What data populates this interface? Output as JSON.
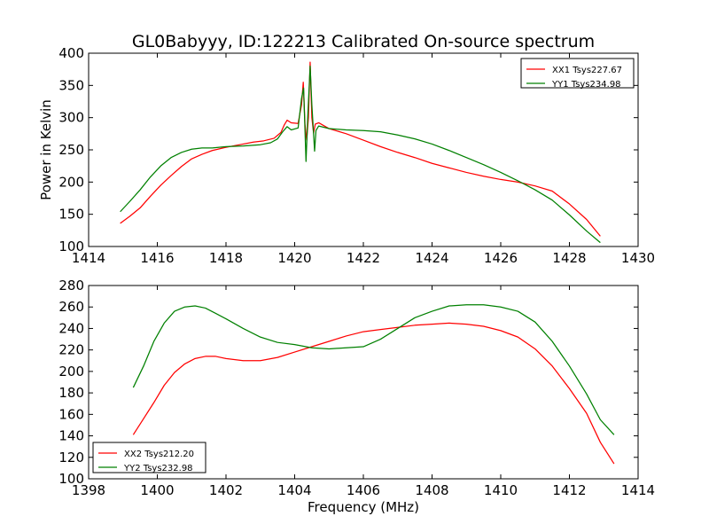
{
  "chart_data": [
    {
      "type": "line",
      "title": "GL0Babyyy, ID:122213 Calibrated On-source spectrum",
      "xlabel": "",
      "ylabel": "Power in Kelvin",
      "xlim": [
        1414,
        1430
      ],
      "ylim": [
        100,
        400
      ],
      "xticks": [
        1414,
        1416,
        1418,
        1420,
        1422,
        1424,
        1426,
        1428,
        1430
      ],
      "yticks": [
        100,
        150,
        200,
        250,
        300,
        350,
        400
      ],
      "grid": false,
      "legend_position": "upper right",
      "series": [
        {
          "name": "XX1 Tsys227.67",
          "color": "#ff0000",
          "points": [
            [
              14.92,
              136
            ],
            [
              15.2,
              147
            ],
            [
              15.5,
              160
            ],
            [
              15.8,
              178
            ],
            [
              16.1,
              195
            ],
            [
              16.4,
              210
            ],
            [
              16.7,
              224
            ],
            [
              17.0,
              236
            ],
            [
              17.3,
              243
            ],
            [
              17.6,
              249
            ],
            [
              18.0,
              254
            ],
            [
              18.4,
              258
            ],
            [
              18.8,
              262
            ],
            [
              19.1,
              264
            ],
            [
              19.4,
              268
            ],
            [
              19.6,
              277
            ],
            [
              19.7,
              289
            ],
            [
              19.78,
              296
            ],
            [
              19.9,
              292
            ],
            [
              20.1,
              291
            ],
            [
              20.2,
              320
            ],
            [
              20.25,
              355
            ],
            [
              20.3,
              290
            ],
            [
              20.35,
              265
            ],
            [
              20.4,
              300
            ],
            [
              20.45,
              386
            ],
            [
              20.5,
              300
            ],
            [
              20.55,
              276
            ],
            [
              20.6,
              290
            ],
            [
              20.7,
              292
            ],
            [
              21.0,
              283
            ],
            [
              21.5,
              275
            ],
            [
              22.0,
              265
            ],
            [
              22.5,
              255
            ],
            [
              23.0,
              246
            ],
            [
              23.5,
              238
            ],
            [
              24.0,
              229
            ],
            [
              24.5,
              222
            ],
            [
              25.0,
              215
            ],
            [
              25.5,
              209
            ],
            [
              26.0,
              204
            ],
            [
              26.5,
              200
            ],
            [
              27.0,
              194
            ],
            [
              27.5,
              186
            ],
            [
              28.0,
              166
            ],
            [
              28.5,
              142
            ],
            [
              28.9,
              116
            ]
          ]
        },
        {
          "name": "YY1 Tsys234.98",
          "color": "#008000",
          "points": [
            [
              14.92,
              154
            ],
            [
              15.2,
              170
            ],
            [
              15.5,
              188
            ],
            [
              15.8,
              208
            ],
            [
              16.1,
              225
            ],
            [
              16.4,
              238
            ],
            [
              16.7,
              246
            ],
            [
              17.0,
              251
            ],
            [
              17.3,
              253
            ],
            [
              17.6,
              253
            ],
            [
              18.0,
              255
            ],
            [
              18.5,
              256
            ],
            [
              19.0,
              258
            ],
            [
              19.3,
              261
            ],
            [
              19.5,
              267
            ],
            [
              19.65,
              278
            ],
            [
              19.78,
              286
            ],
            [
              19.9,
              281
            ],
            [
              20.1,
              284
            ],
            [
              20.2,
              330
            ],
            [
              20.26,
              346
            ],
            [
              20.33,
              232
            ],
            [
              20.38,
              300
            ],
            [
              20.45,
              380
            ],
            [
              20.5,
              320
            ],
            [
              20.58,
              248
            ],
            [
              20.62,
              280
            ],
            [
              20.7,
              287
            ],
            [
              21.0,
              283
            ],
            [
              21.5,
              281
            ],
            [
              22.0,
              280
            ],
            [
              22.5,
              278
            ],
            [
              23.0,
              273
            ],
            [
              23.5,
              267
            ],
            [
              24.0,
              259
            ],
            [
              24.5,
              249
            ],
            [
              25.0,
              238
            ],
            [
              25.5,
              227
            ],
            [
              26.0,
              215
            ],
            [
              26.5,
              202
            ],
            [
              27.0,
              188
            ],
            [
              27.5,
              172
            ],
            [
              28.0,
              149
            ],
            [
              28.5,
              124
            ],
            [
              28.9,
              106
            ]
          ]
        }
      ]
    },
    {
      "type": "line",
      "title": "",
      "xlabel": "Frequency (MHz)",
      "ylabel": "",
      "xlim": [
        1398,
        1414
      ],
      "ylim": [
        100,
        280
      ],
      "xticks": [
        1398,
        1400,
        1402,
        1404,
        1406,
        1408,
        1410,
        1412,
        1414
      ],
      "yticks": [
        100,
        120,
        140,
        160,
        180,
        200,
        220,
        240,
        260,
        280
      ],
      "grid": false,
      "legend_position": "lower left",
      "series": [
        {
          "name": "XX2 Tsys212.20",
          "color": "#ff0000",
          "points": [
            [
              1399.3,
              141
            ],
            [
              1399.6,
              156
            ],
            [
              1399.9,
              171
            ],
            [
              1400.2,
              187
            ],
            [
              1400.5,
              199
            ],
            [
              1400.8,
              207
            ],
            [
              1401.1,
              212
            ],
            [
              1401.4,
              214
            ],
            [
              1401.7,
              214
            ],
            [
              1402.0,
              212
            ],
            [
              1402.5,
              210
            ],
            [
              1403.0,
              210
            ],
            [
              1403.5,
              213
            ],
            [
              1404.0,
              218
            ],
            [
              1404.5,
              223
            ],
            [
              1405.0,
              228
            ],
            [
              1405.5,
              233
            ],
            [
              1406.0,
              237
            ],
            [
              1406.5,
              239
            ],
            [
              1407.0,
              241
            ],
            [
              1407.5,
              243
            ],
            [
              1408.0,
              244
            ],
            [
              1408.5,
              245
            ],
            [
              1409.0,
              244
            ],
            [
              1409.5,
              242
            ],
            [
              1410.0,
              238
            ],
            [
              1410.5,
              232
            ],
            [
              1411.0,
              221
            ],
            [
              1411.5,
              205
            ],
            [
              1412.0,
              184
            ],
            [
              1412.5,
              161
            ],
            [
              1412.9,
              134
            ],
            [
              1413.3,
              114
            ]
          ]
        },
        {
          "name": "YY2 Tsys232.98",
          "color": "#008000",
          "points": [
            [
              1399.3,
              185
            ],
            [
              1399.6,
              205
            ],
            [
              1399.9,
              228
            ],
            [
              1400.2,
              245
            ],
            [
              1400.5,
              256
            ],
            [
              1400.8,
              260
            ],
            [
              1401.1,
              261
            ],
            [
              1401.4,
              259
            ],
            [
              1401.7,
              254
            ],
            [
              1402.0,
              249
            ],
            [
              1402.5,
              240
            ],
            [
              1403.0,
              232
            ],
            [
              1403.5,
              227
            ],
            [
              1404.0,
              225
            ],
            [
              1404.5,
              222
            ],
            [
              1405.0,
              221
            ],
            [
              1405.5,
              222
            ],
            [
              1406.0,
              223
            ],
            [
              1406.5,
              230
            ],
            [
              1407.0,
              240
            ],
            [
              1407.5,
              250
            ],
            [
              1408.0,
              256
            ],
            [
              1408.5,
              261
            ],
            [
              1409.0,
              262
            ],
            [
              1409.5,
              262
            ],
            [
              1410.0,
              260
            ],
            [
              1410.5,
              256
            ],
            [
              1411.0,
              246
            ],
            [
              1411.5,
              228
            ],
            [
              1412.0,
              205
            ],
            [
              1412.5,
              179
            ],
            [
              1412.9,
              155
            ],
            [
              1413.3,
              141
            ]
          ]
        }
      ]
    }
  ]
}
